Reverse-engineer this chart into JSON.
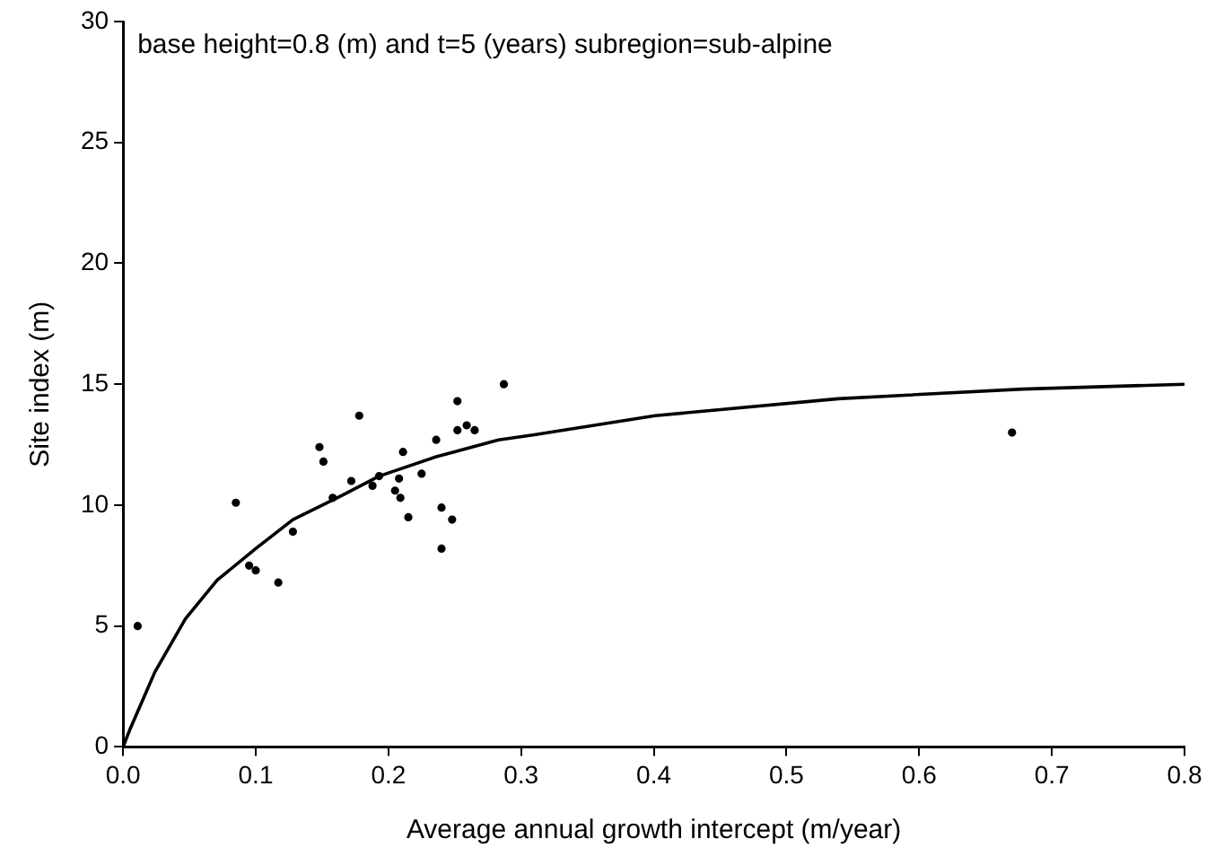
{
  "chart_data": {
    "type": "scatter",
    "xlabel": "Average annual growth intercept (m/year)",
    "ylabel": "Site index (m)",
    "annotations": [
      "base height=0.8 (m) and t=5 (years) subregion=sub-alpine"
    ],
    "xlim": [
      0,
      0.8
    ],
    "xticks": [
      {
        "value": 0,
        "label": "0.0"
      },
      0.1,
      0.2,
      0.3,
      0.4,
      0.5,
      0.6,
      0.7,
      0.8
    ],
    "ylim": [
      0,
      30
    ],
    "yticks": [
      0,
      5,
      10,
      15,
      20,
      25,
      30
    ],
    "grid": false,
    "legend": false,
    "series": [
      {
        "color": "#000000",
        "marker": "circle",
        "x": [
          0.011,
          0.085,
          0.095,
          0.1,
          0.117,
          0.128,
          0.148,
          0.151,
          0.158,
          0.172,
          0.178,
          0.188,
          0.193,
          0.205,
          0.208,
          0.209,
          0.211,
          0.215,
          0.225,
          0.236,
          0.24,
          0.24,
          0.248,
          0.252,
          0.252,
          0.259,
          0.265,
          0.287,
          0.67
        ],
        "values": [
          5.0,
          10.1,
          7.5,
          7.3,
          6.8,
          8.9,
          12.4,
          11.8,
          10.3,
          11.0,
          13.7,
          10.8,
          11.2,
          10.6,
          11.1,
          10.3,
          12.2,
          9.5,
          11.3,
          12.7,
          9.9,
          8.2,
          9.4,
          14.3,
          13.1,
          13.3,
          13.1,
          15.0,
          13.0
        ]
      },
      {
        "type": "line",
        "color": "#000000",
        "marker": "none",
        "line_style": "solid",
        "x": [
          0,
          0.005,
          0.024,
          0.047,
          0.071,
          0.1,
          0.128,
          0.165,
          0.193,
          0.236,
          0.283,
          0.309,
          0.401,
          0.539,
          0.678,
          0.8
        ],
        "values": [
          0,
          0.7,
          3.1,
          5.3,
          6.9,
          8.2,
          9.4,
          10.4,
          11.2,
          12.0,
          12.7,
          12.9,
          13.7,
          14.4,
          14.8,
          15.0
        ]
      }
    ]
  }
}
